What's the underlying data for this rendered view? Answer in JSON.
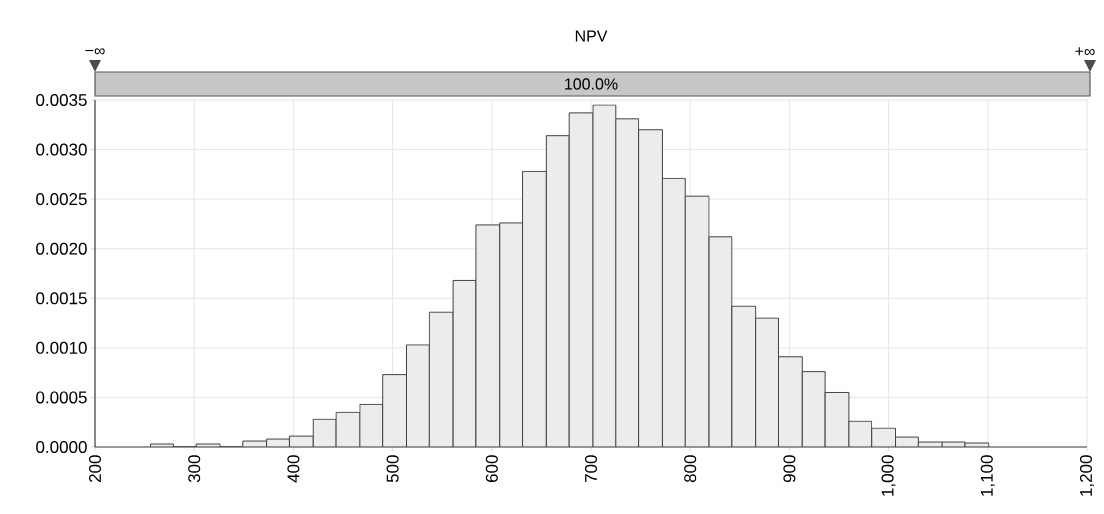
{
  "chart_data": {
    "type": "histogram",
    "title": "NPV",
    "bins": [
      256,
      279,
      302,
      326,
      349,
      373,
      396,
      420,
      443,
      467,
      490,
      514,
      537,
      561,
      584,
      608,
      631,
      655,
      678,
      702,
      725,
      748,
      772,
      795,
      819,
      842,
      866,
      889,
      913,
      936,
      960,
      983,
      1007,
      1030,
      1054,
      1077,
      1101
    ],
    "values": [
      3e-05,
      0,
      3e-05,
      0,
      6e-05,
      8e-05,
      0.00011,
      0.00028,
      0.00035,
      0.00043,
      0.00073,
      0.00103,
      0.00136,
      0.00168,
      0.00224,
      0.00226,
      0.00278,
      0.00314,
      0.00337,
      0.00345,
      0.00331,
      0.0032,
      0.00271,
      0.00253,
      0.00212,
      0.00142,
      0.0013,
      0.00091,
      0.00076,
      0.00055,
      0.00026,
      0.00019,
      0.0001,
      5e-05,
      5e-05,
      4e-05
    ],
    "color": "#ececec",
    "xlim": [
      200,
      1200
    ],
    "ylim": [
      0,
      0.0035
    ],
    "xticks": [
      200,
      300,
      400,
      500,
      600,
      700,
      800,
      900,
      {
        "value": 1000,
        "label": "1,000"
      },
      {
        "value": 1100,
        "label": "1,100"
      },
      {
        "value": 1200,
        "label": "1,200"
      }
    ],
    "yticks": [
      {
        "value": 0,
        "label": "0.0000"
      },
      {
        "value": 0.0005,
        "label": "0.0005"
      },
      {
        "value": 0.001,
        "label": "0.0010"
      },
      {
        "value": 0.0015,
        "label": "0.0015"
      },
      {
        "value": 0.002,
        "label": "0.0020"
      },
      {
        "value": 0.0025,
        "label": "0.0025"
      },
      {
        "value": 0.003,
        "label": "0.0030"
      },
      {
        "value": 0.0035,
        "label": "0.0035"
      }
    ],
    "grid": true,
    "annotations": [
      "−∞",
      "+∞",
      "100.0%"
    ]
  }
}
